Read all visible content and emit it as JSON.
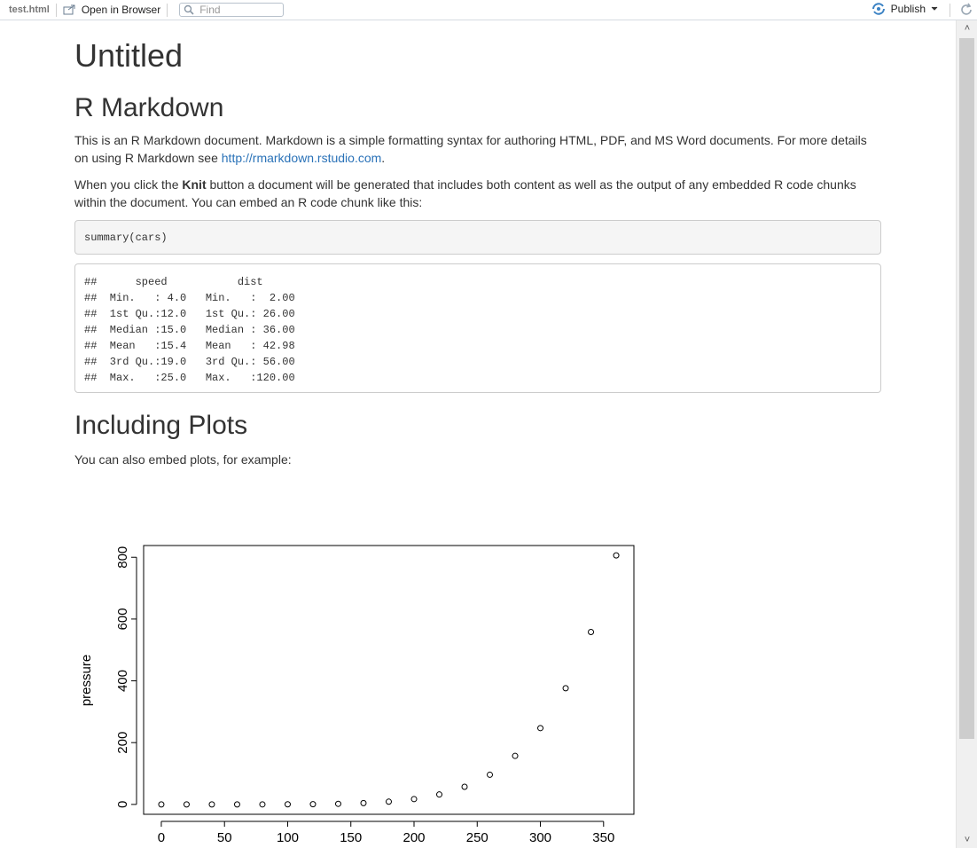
{
  "toolbar": {
    "file": "test.html",
    "open_browser": "Open in Browser",
    "find_placeholder": "Find",
    "publish": "Publish"
  },
  "doc": {
    "title": "Untitled",
    "h_markdown": "R Markdown",
    "p1_text": "This is an R Markdown document. Markdown is a simple formatting syntax for authoring HTML, PDF, and MS Word documents. For more details on using R Markdown see ",
    "p1_link": "http://rmarkdown.rstudio.com",
    "p1_end": ".",
    "p2_a": "When you click the ",
    "p2_bold": "Knit",
    "p2_b": " button a document will be generated that includes both content as well as the output of any embedded R code chunks within the document. You can embed an R code chunk like this:",
    "code": "summary(cars)",
    "output": [
      "##      speed           dist       ",
      "##  Min.   : 4.0   Min.   :  2.00  ",
      "##  1st Qu.:12.0   1st Qu.: 26.00  ",
      "##  Median :15.0   Median : 36.00  ",
      "##  Mean   :15.4   Mean   : 42.98  ",
      "##  3rd Qu.:19.0   3rd Qu.: 56.00  ",
      "##  Max.   :25.0   Max.   :120.00  "
    ],
    "h_plots": "Including Plots",
    "p3": "You can also embed plots, for example:"
  },
  "chart_data": {
    "type": "scatter",
    "ylabel": "pressure",
    "x": [
      0,
      20,
      40,
      60,
      80,
      100,
      120,
      140,
      160,
      180,
      200,
      220,
      240,
      260,
      280,
      300,
      320,
      340,
      360
    ],
    "y": [
      0.0002,
      0.0012,
      0.006,
      0.03,
      0.09,
      0.27,
      0.75,
      1.85,
      4.2,
      8.8,
      17.3,
      32.1,
      57,
      96,
      157,
      247,
      376,
      558,
      806
    ],
    "xticks": [
      "0",
      "50",
      "100",
      "150",
      "200",
      "250",
      "300",
      "350"
    ],
    "yticks": [
      "0",
      "200",
      "400",
      "600",
      "800"
    ],
    "xlim": [
      -14,
      374
    ],
    "ylim": [
      -32,
      838
    ]
  },
  "colors": {
    "link": "#2a72b8",
    "text": "#333333",
    "thumb": "#cdcdcd"
  }
}
